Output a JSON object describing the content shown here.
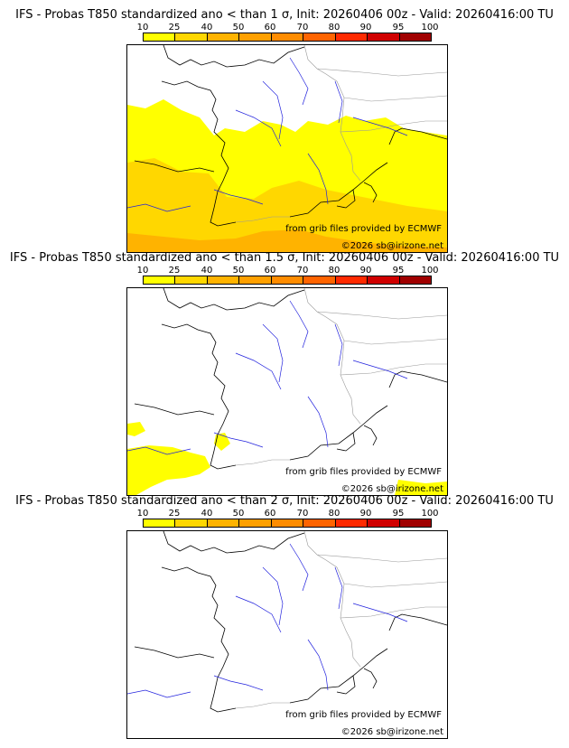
{
  "panels": [
    {
      "title": "IFS - Probas T850  standardized ano < than 1 σ, Init: 20260406 00z - Valid: 20260416:00 TU"
    },
    {
      "title": "IFS - Probas T850  standardized ano < than 1.5 σ, Init: 20260406 00z - Valid: 20260416:00 TU"
    },
    {
      "title": "IFS - Probas T850  standardized ano < than 2 σ, Init: 20260406 00z - Valid: 20260416:00 TU"
    }
  ],
  "colorbar": {
    "labels": [
      "10",
      "25",
      "40",
      "50",
      "60",
      "70",
      "80",
      "90",
      "95",
      "100"
    ],
    "colors": [
      "#ffff00",
      "#ffd700",
      "#ffb300",
      "#ffa000",
      "#ff8c00",
      "#ff6400",
      "#ff2a00",
      "#d00000",
      "#a00000",
      "#600000"
    ]
  },
  "credit": "from grib files provided by ECMWF",
  "copyright": "©2026 sb@irizone.net",
  "colors": {
    "coast": "#000000",
    "borders": "#999999",
    "rivers": "#2222dd",
    "prob_low": "#ffff00",
    "prob_mid": "#ffd700",
    "prob_high": "#ffb300"
  }
}
